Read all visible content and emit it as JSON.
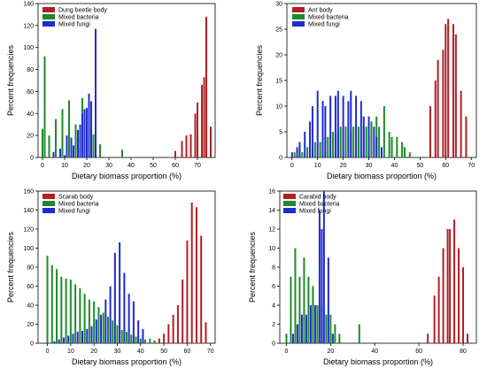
{
  "colors": {
    "body": "#b11f24",
    "bacteria": "#1e8a2a",
    "fungi": "#1f2ccf",
    "axis": "#000000"
  },
  "chart_data": [
    {
      "type": "bar",
      "xlabel": "Dietary biomass  proportion (%)",
      "ylabel": "Percent frequencies",
      "xlim": [
        -2,
        78
      ],
      "ylim": [
        0,
        140
      ],
      "xticks": [
        0,
        10,
        20,
        30,
        40,
        50,
        60,
        70
      ],
      "yticks": [
        0,
        20,
        40,
        60,
        80,
        100,
        120,
        140
      ],
      "legend_position": "top-left",
      "series": [
        {
          "name": "Dung beetle body",
          "color_key": "body",
          "x": [
            60,
            63,
            65,
            67,
            69,
            70,
            72,
            73,
            74,
            76
          ],
          "values": [
            6,
            15,
            20,
            21,
            40,
            50,
            66,
            73,
            128,
            28
          ]
        },
        {
          "name": "Mixed bacteria",
          "color_key": "bacteria",
          "x": [
            0,
            1,
            3,
            6,
            9,
            12,
            15,
            18,
            21,
            23,
            26,
            36
          ],
          "values": [
            26,
            92,
            20,
            35,
            44,
            52,
            30,
            54,
            18,
            21,
            12,
            7
          ]
        },
        {
          "name": "Mixed fungi",
          "color_key": "fungi",
          "x": [
            5,
            8,
            10,
            11,
            13,
            14,
            16,
            17,
            18,
            19,
            20,
            21,
            22,
            24
          ],
          "values": [
            5,
            8,
            2,
            20,
            18,
            11,
            25,
            30,
            40,
            44,
            45,
            58,
            51,
            117
          ]
        }
      ]
    },
    {
      "type": "bar",
      "xlabel": "Dietary biomass  proportion (%)",
      "ylabel": "Percent frequencies",
      "xlim": [
        -2,
        72
      ],
      "ylim": [
        0,
        30
      ],
      "xticks": [
        0,
        10,
        20,
        30,
        40,
        50,
        60,
        70
      ],
      "yticks": [
        0,
        5,
        10,
        15,
        20,
        25,
        30
      ],
      "legend_position": "top-left",
      "series": [
        {
          "name": "Ant body",
          "color_key": "body",
          "x": [
            54,
            56,
            57,
            59,
            60,
            61,
            63,
            64,
            66,
            68
          ],
          "values": [
            10,
            15,
            19,
            21,
            26,
            27,
            26,
            24,
            13,
            8
          ]
        },
        {
          "name": "Mixed bacteria",
          "color_key": "bacteria",
          "x": [
            1,
            3,
            4,
            6,
            8,
            9,
            11,
            13,
            14,
            16,
            18,
            19,
            21,
            23,
            24,
            26,
            28,
            29,
            31,
            33,
            34,
            36,
            38,
            39,
            41,
            43,
            44,
            46
          ],
          "values": [
            1,
            2,
            1,
            2,
            2,
            3,
            3,
            4,
            4,
            5,
            5,
            6,
            6,
            5,
            6,
            6,
            6,
            6,
            7,
            8,
            6,
            10,
            5,
            4,
            4,
            3,
            2,
            1
          ]
        },
        {
          "name": "Mixed fungi",
          "color_key": "fungi",
          "x": [
            0,
            2,
            3,
            5,
            7,
            8,
            10,
            12,
            13,
            15,
            17,
            18,
            20,
            22,
            23,
            25,
            27,
            28,
            30,
            32,
            33,
            35
          ],
          "values": [
            1,
            2,
            3,
            5,
            7,
            10,
            13,
            11,
            10,
            12,
            12,
            13,
            12,
            11,
            13,
            12,
            11,
            8,
            8,
            6,
            4,
            2
          ]
        }
      ]
    },
    {
      "type": "bar",
      "xlabel": "Dietary biomass  proportion (%)",
      "ylabel": "Percent frequencies",
      "xlim": [
        -4,
        72
      ],
      "ylim": [
        0,
        160
      ],
      "xticks": [
        0,
        10,
        20,
        30,
        40,
        50,
        60,
        70
      ],
      "yticks": [
        0,
        20,
        40,
        60,
        80,
        100,
        120,
        140,
        160
      ],
      "legend_position": "top-left",
      "series": [
        {
          "name": "Scarab body",
          "color_key": "body",
          "x": [
            48,
            50,
            52,
            54,
            56,
            58,
            60,
            62,
            64,
            66,
            68
          ],
          "values": [
            5,
            10,
            20,
            30,
            40,
            67,
            108,
            148,
            143,
            113,
            22
          ]
        },
        {
          "name": "Mixed bacteria",
          "color_key": "bacteria",
          "x": [
            0,
            2,
            4,
            6,
            8,
            10,
            12,
            14,
            16,
            18,
            20,
            22,
            24,
            26,
            28,
            30,
            32,
            34,
            36,
            38,
            40,
            42,
            44,
            46
          ],
          "values": [
            92,
            82,
            78,
            70,
            68,
            67,
            62,
            58,
            52,
            46,
            44,
            38,
            32,
            28,
            24,
            19,
            14,
            12,
            9,
            7,
            5,
            4,
            5,
            3
          ]
        },
        {
          "name": "Mixed fungi",
          "color_key": "fungi",
          "x": [
            3,
            5,
            7,
            9,
            11,
            13,
            15,
            17,
            19,
            21,
            23,
            25,
            27,
            29,
            31,
            33,
            35,
            37,
            39,
            41
          ],
          "values": [
            2,
            4,
            6,
            8,
            10,
            12,
            13,
            15,
            18,
            25,
            30,
            46,
            60,
            95,
            106,
            74,
            52,
            44,
            24,
            15
          ]
        }
      ]
    },
    {
      "type": "bar",
      "xlabel": "Dietary biomass  proportion (%)",
      "ylabel": "Percent frequencies",
      "xlim": [
        -3,
        86
      ],
      "ylim": [
        0,
        16
      ],
      "xticks": [
        0,
        20,
        40,
        60,
        80
      ],
      "yticks": [
        0,
        2,
        4,
        6,
        8,
        10,
        12,
        14,
        16
      ],
      "legend_position": "top-left",
      "series": [
        {
          "name": "Carabid body",
          "color_key": "body",
          "x": [
            64,
            67,
            69,
            71,
            73,
            74,
            76,
            78,
            80,
            82
          ],
          "values": [
            1,
            5,
            7,
            10,
            12,
            12,
            13,
            10,
            8,
            1
          ]
        },
        {
          "name": "Mixed bacteria",
          "color_key": "bacteria",
          "x": [
            0,
            2,
            4,
            6,
            8,
            10,
            12,
            14,
            16,
            18,
            20,
            22,
            24,
            33
          ],
          "values": [
            1,
            7,
            10,
            7,
            9,
            7,
            6,
            4,
            4,
            3,
            3,
            2,
            1,
            2
          ]
        },
        {
          "name": "Mixed fungi",
          "color_key": "fungi",
          "x": [
            3,
            5,
            7,
            9,
            11,
            13,
            15,
            16,
            17,
            19,
            21
          ],
          "values": [
            1,
            2,
            3,
            3,
            4,
            4,
            14,
            12,
            16,
            9,
            1
          ]
        }
      ]
    }
  ]
}
